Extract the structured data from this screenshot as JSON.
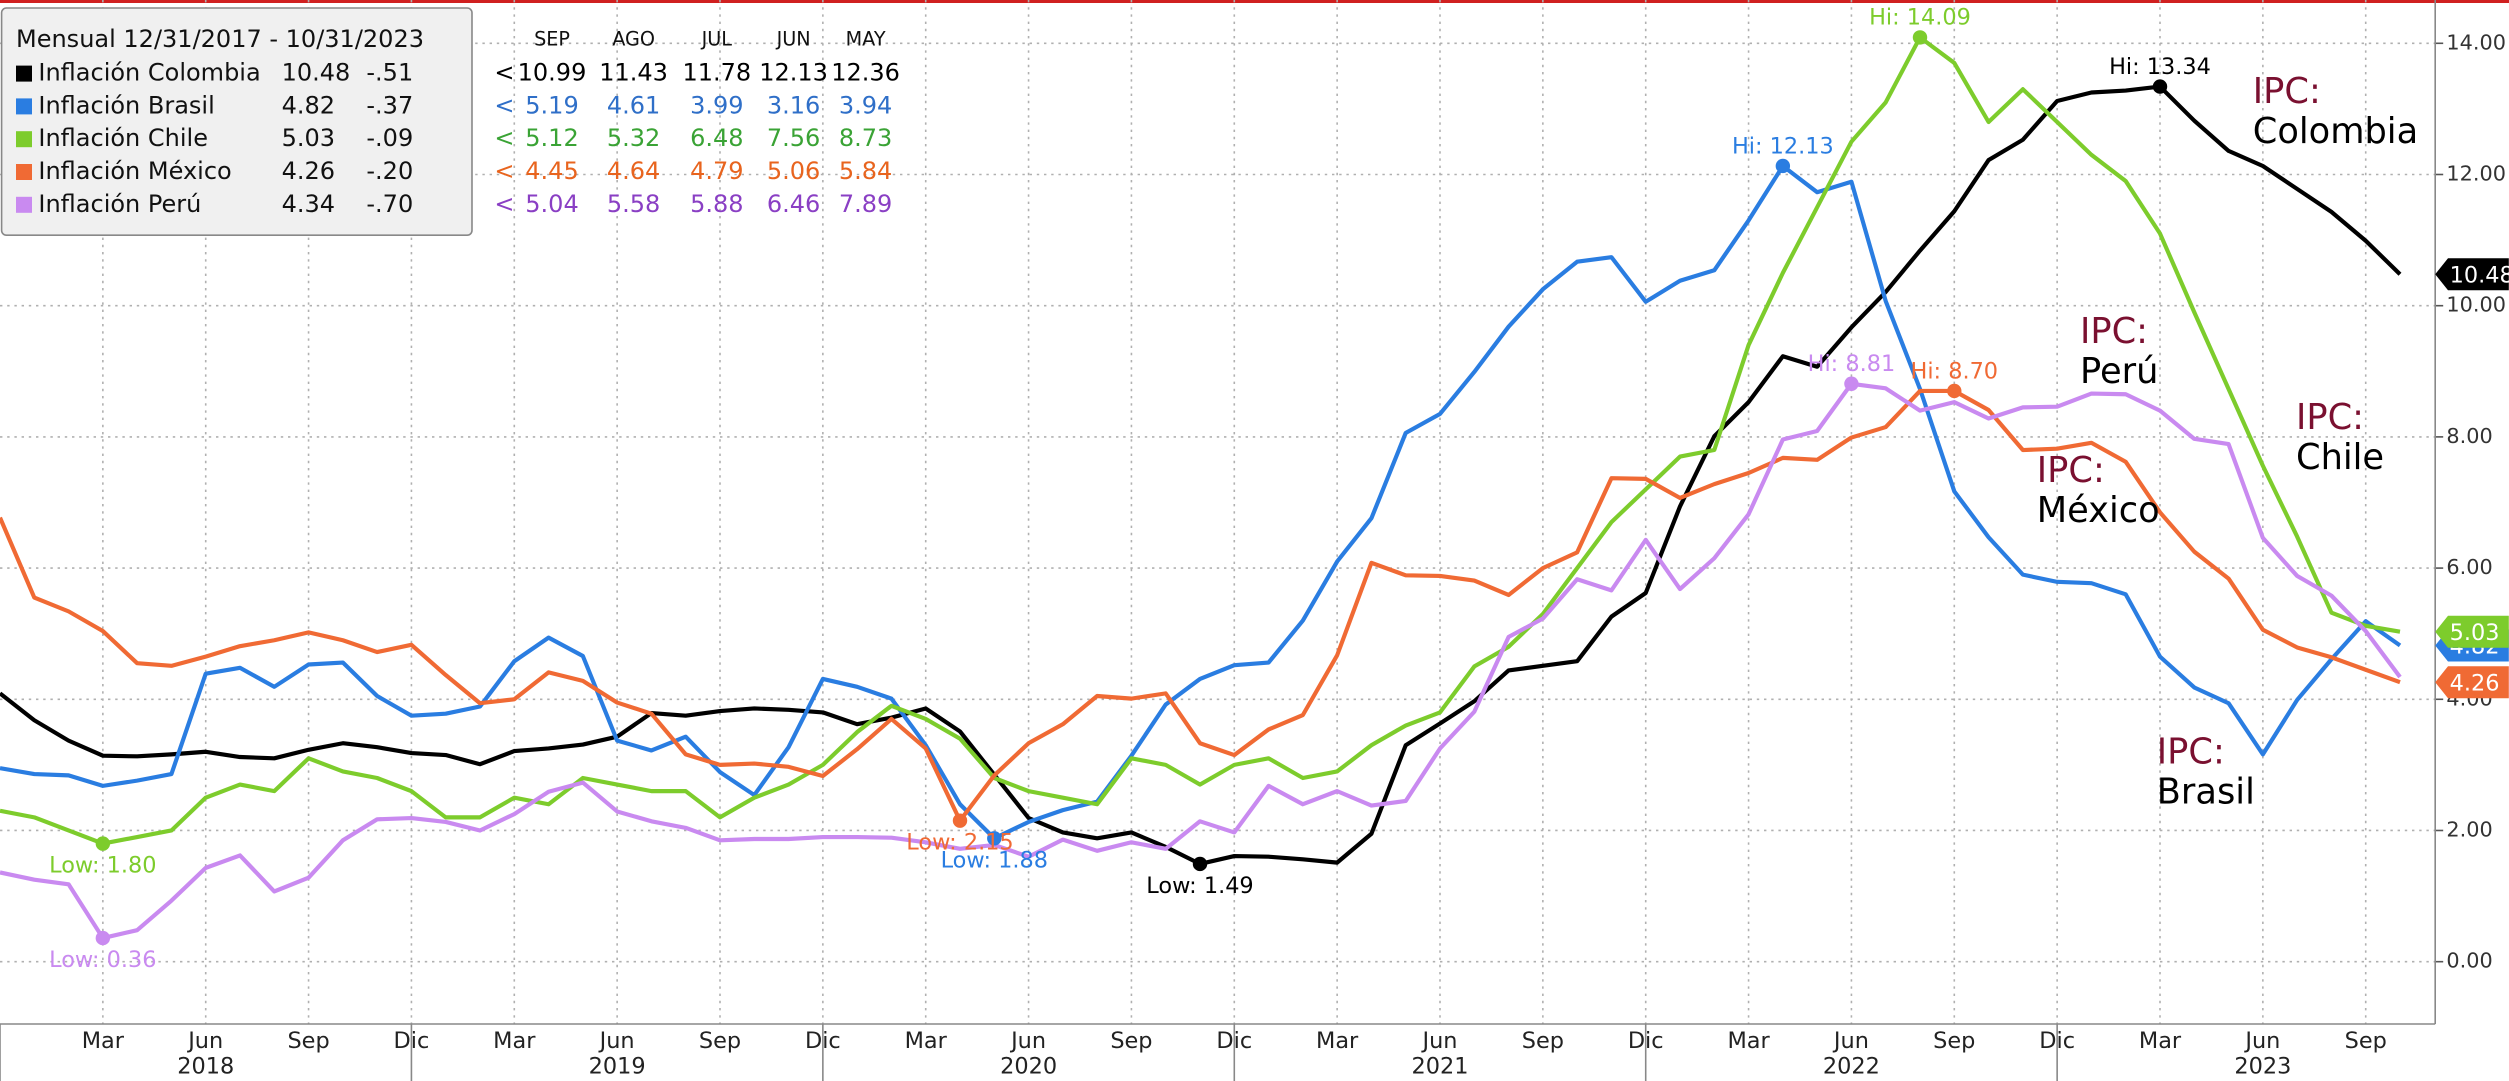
{
  "chart_data": {
    "type": "line",
    "legend_title": "Mensual 12/31/2017 - 10/31/2023",
    "table_headers": [
      "SEP",
      "AGO",
      "JUL",
      "JUN",
      "MAY"
    ],
    "table_marker": "<",
    "categories": [
      null,
      null,
      null,
      "Mar",
      null,
      null,
      "Jun",
      null,
      null,
      "Sep",
      null,
      null,
      "Dic",
      null,
      null,
      "Mar",
      null,
      null,
      "Jun",
      null,
      null,
      "Sep",
      null,
      null,
      "Dic",
      null,
      null,
      "Mar",
      null,
      null,
      "Jun",
      null,
      null,
      "Sep",
      null,
      null,
      "Dic",
      null,
      null,
      "Mar",
      null,
      null,
      "Jun",
      null,
      null,
      "Sep",
      null,
      null,
      "Dic",
      null,
      null,
      "Mar",
      null,
      null,
      "Jun",
      null,
      null,
      "Sep",
      null,
      null,
      "Dic",
      null,
      null,
      "Mar",
      null,
      null,
      "Jun",
      null,
      null,
      "Sep",
      null
    ],
    "years": [
      "2018",
      "2019",
      "2020",
      "2021",
      "2022",
      "2023"
    ],
    "ylim": [
      -0.95,
      14.66
    ],
    "yticks": [
      {
        "value": 0,
        "label": "0.00"
      },
      {
        "value": 2,
        "label": "2.00"
      },
      {
        "value": 4,
        "label": "4.00"
      },
      {
        "value": 6,
        "label": "6.00"
      },
      {
        "value": 8,
        "label": "8.00"
      },
      {
        "value": 10,
        "label": "10.00"
      },
      {
        "value": 12,
        "label": "12.00"
      },
      {
        "value": 14,
        "label": "14.00"
      }
    ],
    "grid": true,
    "series": [
      {
        "name": "Inflación Colombia",
        "color": "#000000",
        "text_color": "#000000",
        "last_label": "10.48",
        "change_label": "-.51",
        "recent_labels": [
          "10.99",
          "11.43",
          "11.78",
          "12.13",
          "12.36"
        ],
        "axis_tag": true,
        "values": [
          4.09,
          3.68,
          3.37,
          3.14,
          3.13,
          3.16,
          3.2,
          3.12,
          3.1,
          3.23,
          3.33,
          3.27,
          3.18,
          3.15,
          3.01,
          3.21,
          3.25,
          3.31,
          3.43,
          3.79,
          3.75,
          3.82,
          3.86,
          3.84,
          3.8,
          3.62,
          3.72,
          3.86,
          3.51,
          2.85,
          2.19,
          1.97,
          1.88,
          1.97,
          1.75,
          1.49,
          1.61,
          1.6,
          1.56,
          1.51,
          1.95,
          3.3,
          3.63,
          3.97,
          4.44,
          4.51,
          4.58,
          5.26,
          5.62,
          6.94,
          8.01,
          8.53,
          9.23,
          9.07,
          9.67,
          10.21,
          10.84,
          11.44,
          12.22,
          12.53,
          13.12,
          13.25,
          13.28,
          13.34,
          12.82,
          12.36,
          12.13,
          11.78,
          11.43,
          10.99,
          10.48
        ]
      },
      {
        "name": "Inflación Brasil",
        "color": "#2a7de1",
        "text_color": "#2f6fc8",
        "last_label": "4.82",
        "change_label": "-.37",
        "recent_labels": [
          "5.19",
          "4.61",
          "3.99",
          "3.16",
          "3.94"
        ],
        "axis_tag": true,
        "values": [
          2.95,
          2.86,
          2.84,
          2.68,
          2.76,
          2.86,
          4.39,
          4.48,
          4.19,
          4.53,
          4.56,
          4.05,
          3.75,
          3.78,
          3.89,
          4.58,
          4.94,
          4.66,
          3.37,
          3.22,
          3.43,
          2.89,
          2.54,
          3.27,
          4.31,
          4.19,
          4.01,
          3.3,
          2.4,
          1.88,
          2.13,
          2.31,
          2.44,
          3.14,
          3.92,
          4.31,
          4.52,
          4.56,
          5.2,
          6.1,
          6.76,
          8.06,
          8.35,
          8.99,
          9.68,
          10.25,
          10.67,
          10.74,
          10.06,
          10.38,
          10.54,
          11.3,
          12.13,
          11.73,
          11.89,
          10.07,
          8.73,
          7.17,
          6.47,
          5.9,
          5.79,
          5.77,
          5.6,
          4.65,
          4.18,
          3.94,
          3.16,
          3.99,
          4.61,
          5.19,
          4.82
        ]
      },
      {
        "name": "Inflación Chile",
        "color": "#7dcc2c",
        "text_color": "#3aa335",
        "last_label": "5.03",
        "change_label": "-.09",
        "recent_labels": [
          "5.12",
          "5.32",
          "6.48",
          "7.56",
          "8.73"
        ],
        "axis_tag": true,
        "values": [
          2.3,
          2.2,
          2.0,
          1.8,
          1.9,
          2.0,
          2.5,
          2.7,
          2.6,
          3.1,
          2.9,
          2.8,
          2.6,
          2.2,
          2.2,
          2.5,
          2.4,
          2.8,
          2.7,
          2.6,
          2.6,
          2.2,
          2.5,
          2.7,
          3.0,
          3.5,
          3.9,
          3.7,
          3.4,
          2.8,
          2.6,
          2.5,
          2.4,
          3.1,
          3.0,
          2.7,
          3.0,
          3.1,
          2.8,
          2.9,
          3.3,
          3.6,
          3.8,
          4.5,
          4.8,
          5.3,
          6.0,
          6.7,
          7.2,
          7.7,
          7.8,
          9.4,
          10.5,
          11.5,
          12.5,
          13.1,
          14.09,
          13.7,
          12.8,
          13.3,
          12.8,
          12.3,
          11.9,
          11.1,
          9.9,
          8.73,
          7.56,
          6.48,
          5.32,
          5.12,
          5.03
        ]
      },
      {
        "name": "Inflación México",
        "color": "#f06a34",
        "text_color": "#e8641e",
        "last_label": "4.26",
        "change_label": "-.20",
        "recent_labels": [
          "4.45",
          "4.64",
          "4.79",
          "5.06",
          "5.84"
        ],
        "axis_tag": true,
        "values": [
          6.77,
          5.55,
          5.34,
          5.04,
          4.55,
          4.51,
          4.65,
          4.81,
          4.9,
          5.02,
          4.9,
          4.72,
          4.83,
          4.37,
          3.94,
          4.0,
          4.41,
          4.28,
          3.95,
          3.78,
          3.16,
          3.0,
          3.02,
          2.97,
          2.83,
          3.24,
          3.7,
          3.25,
          2.15,
          2.84,
          3.33,
          3.62,
          4.05,
          4.01,
          4.09,
          3.33,
          3.15,
          3.54,
          3.76,
          4.67,
          6.08,
          5.89,
          5.88,
          5.81,
          5.59,
          6.0,
          6.24,
          7.37,
          7.36,
          7.07,
          7.28,
          7.45,
          7.68,
          7.65,
          7.99,
          8.15,
          8.7,
          8.7,
          8.41,
          7.8,
          7.82,
          7.91,
          7.62,
          6.85,
          6.25,
          5.84,
          5.06,
          4.79,
          4.64,
          4.45,
          4.26
        ]
      },
      {
        "name": "Inflación Perú",
        "color": "#c98af0",
        "text_color": "#8a3fc4",
        "last_label": "4.34",
        "change_label": "-.70",
        "recent_labels": [
          "5.04",
          "5.58",
          "5.88",
          "6.46",
          "7.89"
        ],
        "axis_tag": false,
        "values": [
          1.36,
          1.25,
          1.18,
          0.36,
          0.48,
          0.93,
          1.43,
          1.62,
          1.07,
          1.28,
          1.85,
          2.17,
          2.19,
          2.13,
          2.0,
          2.25,
          2.59,
          2.73,
          2.29,
          2.14,
          2.04,
          1.85,
          1.87,
          1.87,
          1.9,
          1.9,
          1.89,
          1.82,
          1.72,
          1.78,
          1.6,
          1.86,
          1.69,
          1.82,
          1.72,
          2.14,
          1.97,
          2.68,
          2.4,
          2.6,
          2.38,
          2.45,
          3.25,
          3.81,
          4.95,
          5.23,
          5.83,
          5.66,
          6.43,
          5.68,
          6.15,
          6.82,
          7.96,
          8.09,
          8.81,
          8.74,
          8.4,
          8.53,
          8.28,
          8.45,
          8.46,
          8.66,
          8.65,
          8.4,
          7.97,
          7.89,
          6.46,
          5.88,
          5.58,
          5.04,
          4.34
        ]
      }
    ],
    "point_labels": [
      {
        "series": 0,
        "index": 63,
        "label": "Hi: 13.34"
      },
      {
        "series": 0,
        "index": 35,
        "label": "Low: 1.49"
      },
      {
        "series": 1,
        "index": 52,
        "label": "Hi: 12.13"
      },
      {
        "series": 1,
        "index": 29,
        "label": "Low: 1.88"
      },
      {
        "series": 2,
        "index": 56,
        "label": "Hi: 14.09"
      },
      {
        "series": 2,
        "index": 3,
        "label": "Low: 1.80"
      },
      {
        "series": 3,
        "index": 57,
        "label": "Hi: 8.70"
      },
      {
        "series": 3,
        "index": 28,
        "label": "Low: 2.15"
      },
      {
        "series": 4,
        "index": 54,
        "label": "Hi: 8.81"
      },
      {
        "series": 4,
        "index": 3,
        "label": "Low: 0.36"
      }
    ],
    "callouts": [
      {
        "prefix": "IPC:",
        "name": "Colombia"
      },
      {
        "prefix": "IPC:",
        "name": "Perú"
      },
      {
        "prefix": "IPC:",
        "name": "Chile"
      },
      {
        "prefix": "IPC:",
        "name": "México"
      },
      {
        "prefix": "IPC:",
        "name": "Brasil"
      }
    ]
  }
}
